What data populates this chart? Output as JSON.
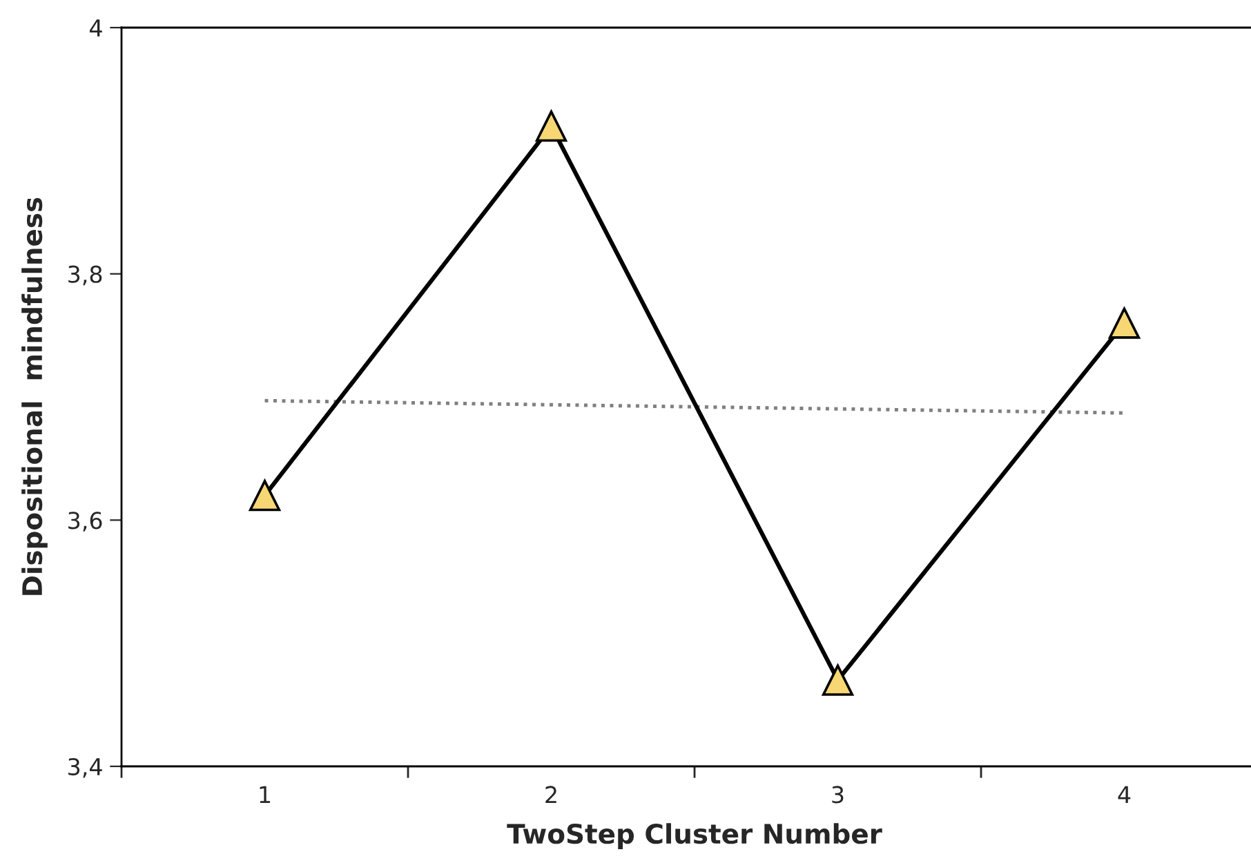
{
  "chart_data": {
    "type": "line",
    "xlabel": "TwoStep Cluster Number",
    "ylabel": "Dispositional  mindfulness",
    "categories": [
      "1",
      "2",
      "3",
      "4"
    ],
    "series": [
      {
        "color": "#000000",
        "values": [
          3.62,
          3.92,
          3.47,
          3.76
        ],
        "marker": "triangle",
        "line_style": "solid"
      },
      {
        "type": "line",
        "color": "#808080",
        "x": [
          "1",
          "4"
        ],
        "values": [
          3.697,
          3.687
        ],
        "marker": "none",
        "line_style": "dotted"
      }
    ],
    "ylim": [
      3.4,
      4
    ],
    "yticks": [
      {
        "value": 3.4,
        "label": "3,4"
      },
      {
        "value": 3.6,
        "label": "3,6"
      },
      {
        "value": 3.8,
        "label": "3,8"
      },
      {
        "value": 4,
        "label": "4"
      }
    ],
    "grid": false,
    "legend": false
  }
}
